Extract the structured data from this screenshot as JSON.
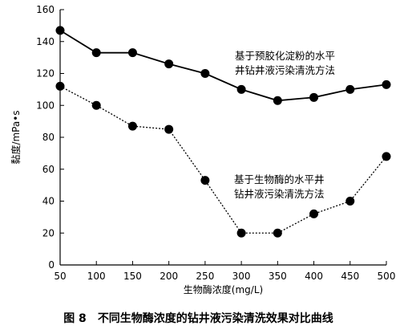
{
  "caption": {
    "figure_no": "图 8",
    "text": "不同生物酶浓度的钻井液污染清洗效果对比曲线"
  },
  "chart_data": {
    "type": "line",
    "title": "",
    "xlabel": "生物酶浓度(mg/L)",
    "ylabel": "黏度/mPa•s",
    "x": [
      50,
      100,
      150,
      200,
      250,
      300,
      350,
      400,
      450,
      500
    ],
    "xlim": [
      50,
      500
    ],
    "ylim": [
      0,
      160
    ],
    "xticks": [
      50,
      100,
      150,
      200,
      250,
      300,
      350,
      400,
      450,
      500
    ],
    "yticks": [
      0,
      20,
      40,
      60,
      80,
      100,
      120,
      140,
      160
    ],
    "grid": false,
    "series": [
      {
        "values": [
          147,
          133,
          133,
          126,
          120,
          110,
          103,
          105,
          110,
          113
        ],
        "line_style": "solid",
        "color": "#000000"
      },
      {
        "values": [
          112,
          100,
          87,
          85,
          53,
          20,
          20,
          32,
          40,
          68
        ],
        "line_style": "dotted",
        "color": "#000000"
      }
    ],
    "annotations": [
      {
        "lines": [
          "基于预胶化淀粉的水平",
          "井钻井液污染清洗方法"
        ]
      },
      {
        "lines": [
          "基于生物酶的水平井",
          "钻井液污染清洗方法"
        ]
      }
    ]
  }
}
